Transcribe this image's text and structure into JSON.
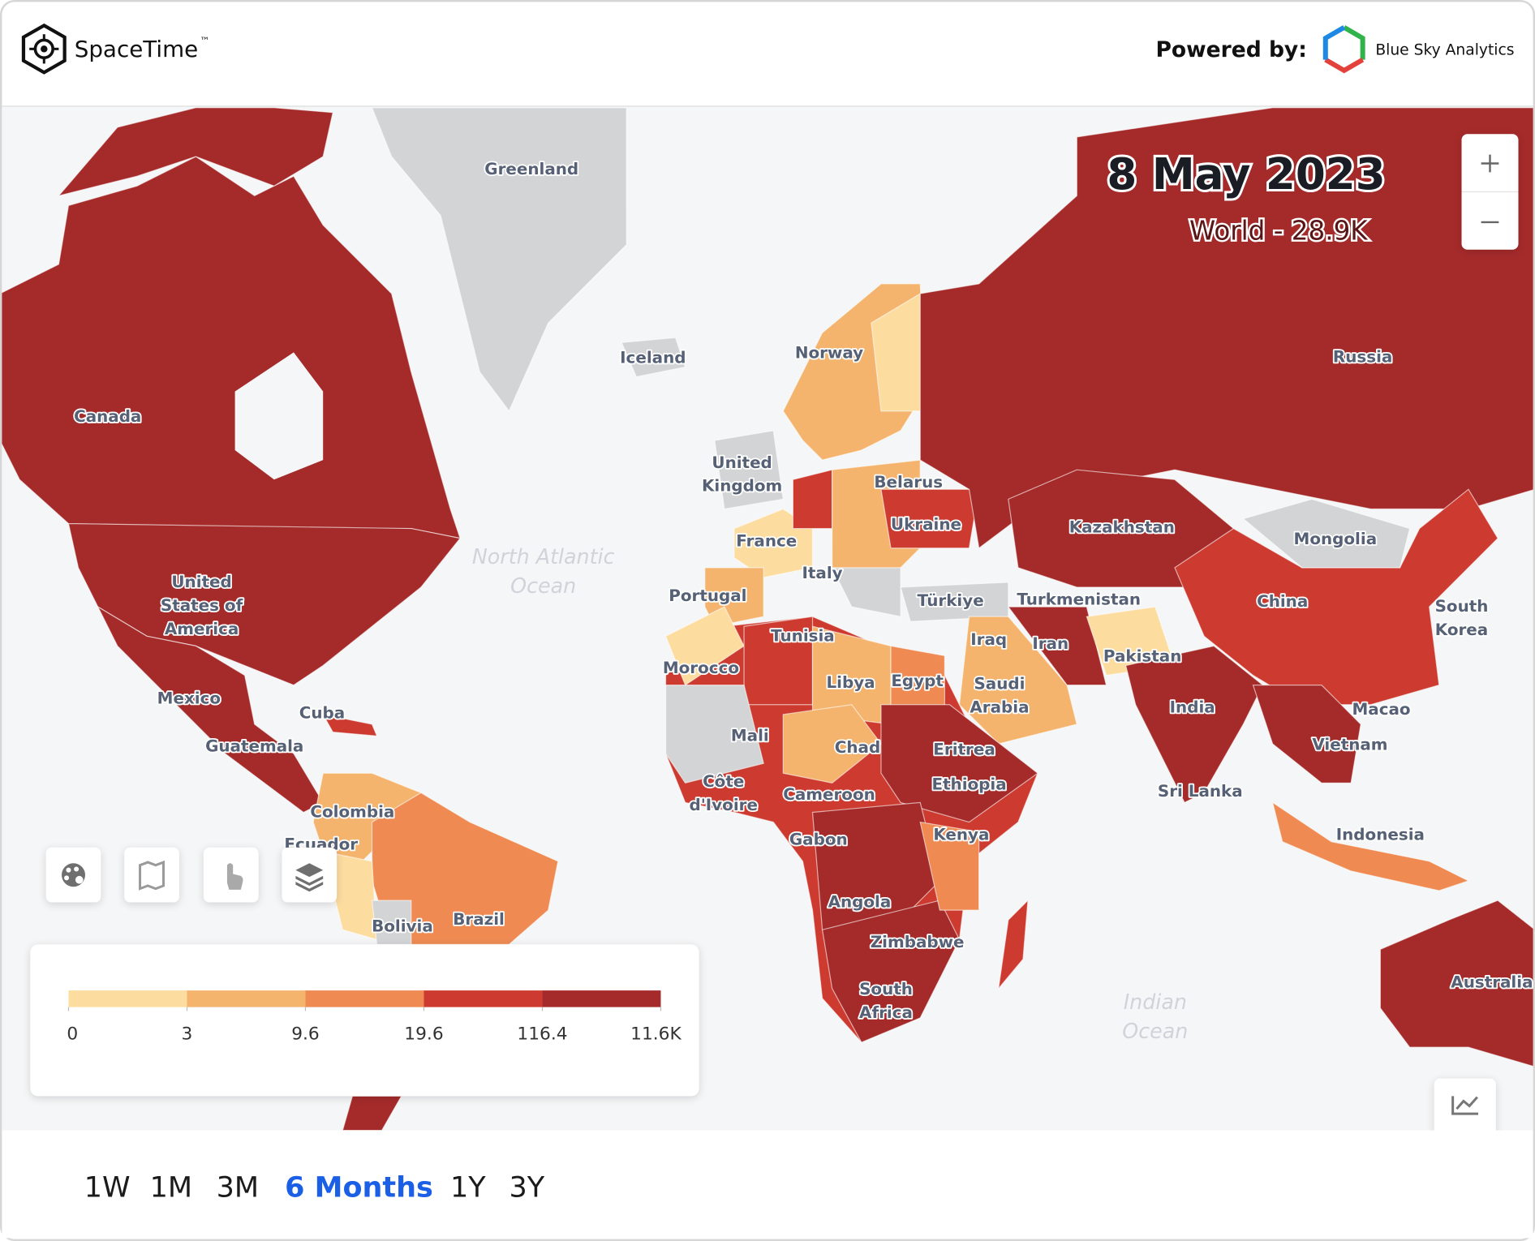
{
  "header": {
    "brand": "SpaceTime",
    "trademark": "™",
    "powered_by": "Powered by:",
    "partner": "Blue Sky Analytics"
  },
  "map": {
    "date": "8 May 2023",
    "summary": "World - 28.9K",
    "ocean_labels": [
      [
        "North Atlantic",
        "Ocean"
      ],
      [
        "Indian",
        "Ocean"
      ]
    ],
    "country_labels": [
      [
        "Greenland"
      ],
      [
        "Iceland"
      ],
      [
        "Norway"
      ],
      [
        "Russia"
      ],
      [
        "Canada"
      ],
      [
        "United",
        "Kingdom"
      ],
      [
        "Belarus"
      ],
      [
        "Kazakhstan"
      ],
      [
        "Mongolia"
      ],
      [
        "Ukraine"
      ],
      [
        "France"
      ],
      [
        "Italy"
      ],
      [
        "Portugal"
      ],
      [
        "Türkiye"
      ],
      [
        "Turkmenistan"
      ],
      [
        "China"
      ],
      [
        "South",
        "Korea"
      ],
      [
        "United",
        "States of",
        "America"
      ],
      [
        "Tunisia"
      ],
      [
        "Iraq"
      ],
      [
        "Iran"
      ],
      [
        "Pakistan"
      ],
      [
        "Morocco"
      ],
      [
        "Libya"
      ],
      [
        "Egypt"
      ],
      [
        "Saudi",
        "Arabia"
      ],
      [
        "India"
      ],
      [
        "Macao"
      ],
      [
        "Mexico"
      ],
      [
        "Cuba"
      ],
      [
        "Mali"
      ],
      [
        "Chad"
      ],
      [
        "Eritrea"
      ],
      [
        "Guatemala"
      ],
      [
        "Vietnam"
      ],
      [
        "Côte",
        "d'Ivoire"
      ],
      [
        "Ethiopia"
      ],
      [
        "Sri Lanka"
      ],
      [
        "Cameroon"
      ],
      [
        "Colombia"
      ],
      [
        "Gabon"
      ],
      [
        "Kenya"
      ],
      [
        "Indonesia"
      ],
      [
        "Ecuador"
      ],
      [
        "Angola"
      ],
      [
        "Brazil"
      ],
      [
        "Bolivia"
      ],
      [
        "Zimbabwe"
      ],
      [
        "South",
        "Africa"
      ],
      [
        "Australia"
      ]
    ]
  },
  "legend": {
    "colors": [
      "#fddca0",
      "#f5b46e",
      "#ee8a52",
      "#cd3b30",
      "#a52a2a"
    ],
    "ticks": [
      0,
      3,
      9.6,
      19.6,
      116.4,
      {
        "value": 11600,
        "label": "11.6K"
      }
    ]
  },
  "time_ranges": {
    "options": [
      "1W",
      "1M",
      "3M",
      "6 Months",
      "1Y",
      "3Y"
    ],
    "selected": 3
  }
}
